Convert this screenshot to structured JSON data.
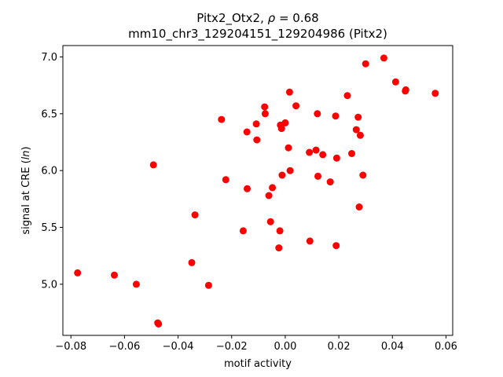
{
  "chart_data": {
    "type": "scatter",
    "title_line1_prefix": "Pitx2_Otx2, ",
    "title_rho_symbol": "ρ",
    "title_rho_value": " = 0.68",
    "title_line2": "mm10_chr3_129204151_129204986 (Pitx2)",
    "xlabel": "motif activity",
    "ylabel_prefix": "signal at CRE (",
    "ylabel_italic": "ln",
    "ylabel_suffix": ")",
    "xlim": [
      -0.083,
      0.0625
    ],
    "ylim": [
      4.55,
      7.1
    ],
    "xticks": [
      -0.08,
      -0.06,
      -0.04,
      -0.02,
      0.0,
      0.02,
      0.04,
      0.06
    ],
    "xtick_labels": [
      "−0.08",
      "−0.06",
      "−0.04",
      "−0.02",
      "0.00",
      "0.02",
      "0.04",
      "0.06"
    ],
    "yticks": [
      5.0,
      5.5,
      6.0,
      6.5,
      7.0
    ],
    "ytick_labels": [
      "5.0",
      "5.5",
      "6.0",
      "6.5",
      "7.0"
    ],
    "grid": false,
    "marker_color": "#ff0000",
    "points": [
      {
        "x": -0.0775,
        "y": 5.1
      },
      {
        "x": -0.0638,
        "y": 5.08
      },
      {
        "x": -0.0556,
        "y": 5.0
      },
      {
        "x": -0.0492,
        "y": 6.05
      },
      {
        "x": -0.0476,
        "y": 4.66
      },
      {
        "x": -0.0473,
        "y": 4.65
      },
      {
        "x": -0.0349,
        "y": 5.19
      },
      {
        "x": -0.0337,
        "y": 5.61
      },
      {
        "x": -0.0286,
        "y": 4.99
      },
      {
        "x": -0.0238,
        "y": 6.45
      },
      {
        "x": -0.0222,
        "y": 5.92
      },
      {
        "x": -0.0157,
        "y": 5.47
      },
      {
        "x": -0.0143,
        "y": 6.34
      },
      {
        "x": -0.0142,
        "y": 5.84
      },
      {
        "x": -0.0108,
        "y": 6.41
      },
      {
        "x": -0.0106,
        "y": 6.27
      },
      {
        "x": -0.0077,
        "y": 6.56
      },
      {
        "x": -0.0075,
        "y": 6.5
      },
      {
        "x": -0.0061,
        "y": 5.78
      },
      {
        "x": -0.0055,
        "y": 5.55
      },
      {
        "x": -0.0048,
        "y": 5.85
      },
      {
        "x": -0.0024,
        "y": 5.32
      },
      {
        "x": -0.002,
        "y": 5.47
      },
      {
        "x": -0.0018,
        "y": 6.4
      },
      {
        "x": -0.0014,
        "y": 6.37
      },
      {
        "x": -0.0012,
        "y": 5.96
      },
      {
        "x": 0.0,
        "y": 6.42
      },
      {
        "x": 0.0012,
        "y": 6.2
      },
      {
        "x": 0.0016,
        "y": 6.69
      },
      {
        "x": 0.0018,
        "y": 6.0
      },
      {
        "x": 0.004,
        "y": 6.57
      },
      {
        "x": 0.009,
        "y": 6.16
      },
      {
        "x": 0.0092,
        "y": 5.38
      },
      {
        "x": 0.0115,
        "y": 6.18
      },
      {
        "x": 0.012,
        "y": 6.5
      },
      {
        "x": 0.0122,
        "y": 5.95
      },
      {
        "x": 0.014,
        "y": 6.14
      },
      {
        "x": 0.0168,
        "y": 5.9
      },
      {
        "x": 0.0188,
        "y": 6.48
      },
      {
        "x": 0.019,
        "y": 5.34
      },
      {
        "x": 0.0192,
        "y": 6.11
      },
      {
        "x": 0.0232,
        "y": 6.66
      },
      {
        "x": 0.0248,
        "y": 6.15
      },
      {
        "x": 0.0265,
        "y": 6.36
      },
      {
        "x": 0.0272,
        "y": 6.47
      },
      {
        "x": 0.0276,
        "y": 5.68
      },
      {
        "x": 0.028,
        "y": 6.31
      },
      {
        "x": 0.029,
        "y": 5.96
      },
      {
        "x": 0.03,
        "y": 6.94
      },
      {
        "x": 0.0368,
        "y": 6.99
      },
      {
        "x": 0.0412,
        "y": 6.78
      },
      {
        "x": 0.0448,
        "y": 6.7
      },
      {
        "x": 0.045,
        "y": 6.71
      },
      {
        "x": 0.056,
        "y": 6.68
      }
    ]
  }
}
